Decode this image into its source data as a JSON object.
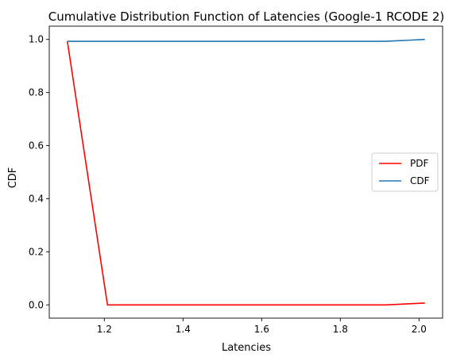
{
  "chart_data": {
    "type": "line",
    "title": "Cumulative Distribution Function of Latencies (Google-1 RCODE 2)",
    "xlabel": "Latencies",
    "ylabel": "CDF",
    "xlim": [
      1.06,
      2.06
    ],
    "ylim": [
      -0.05,
      1.05
    ],
    "xticks": [
      1.2,
      1.4,
      1.6,
      1.8,
      2.0
    ],
    "xtick_labels": [
      "1.2",
      "1.4",
      "1.6",
      "1.8",
      "2.0"
    ],
    "yticks": [
      0.0,
      0.2,
      0.4,
      0.6,
      0.8,
      1.0
    ],
    "ytick_labels": [
      "0.0",
      "0.2",
      "0.4",
      "0.6",
      "0.8",
      "1.0"
    ],
    "grid": false,
    "legend_position": "center-right",
    "series": [
      {
        "name": "PDF",
        "color": "#ff0000",
        "x": [
          1.106,
          1.208,
          1.915,
          2.015
        ],
        "y": [
          0.993,
          0.0,
          0.0,
          0.007
        ]
      },
      {
        "name": "CDF",
        "color": "#1f77b4",
        "x": [
          1.106,
          1.208,
          1.915,
          2.015
        ],
        "y": [
          0.993,
          0.993,
          0.993,
          1.0
        ]
      }
    ]
  }
}
